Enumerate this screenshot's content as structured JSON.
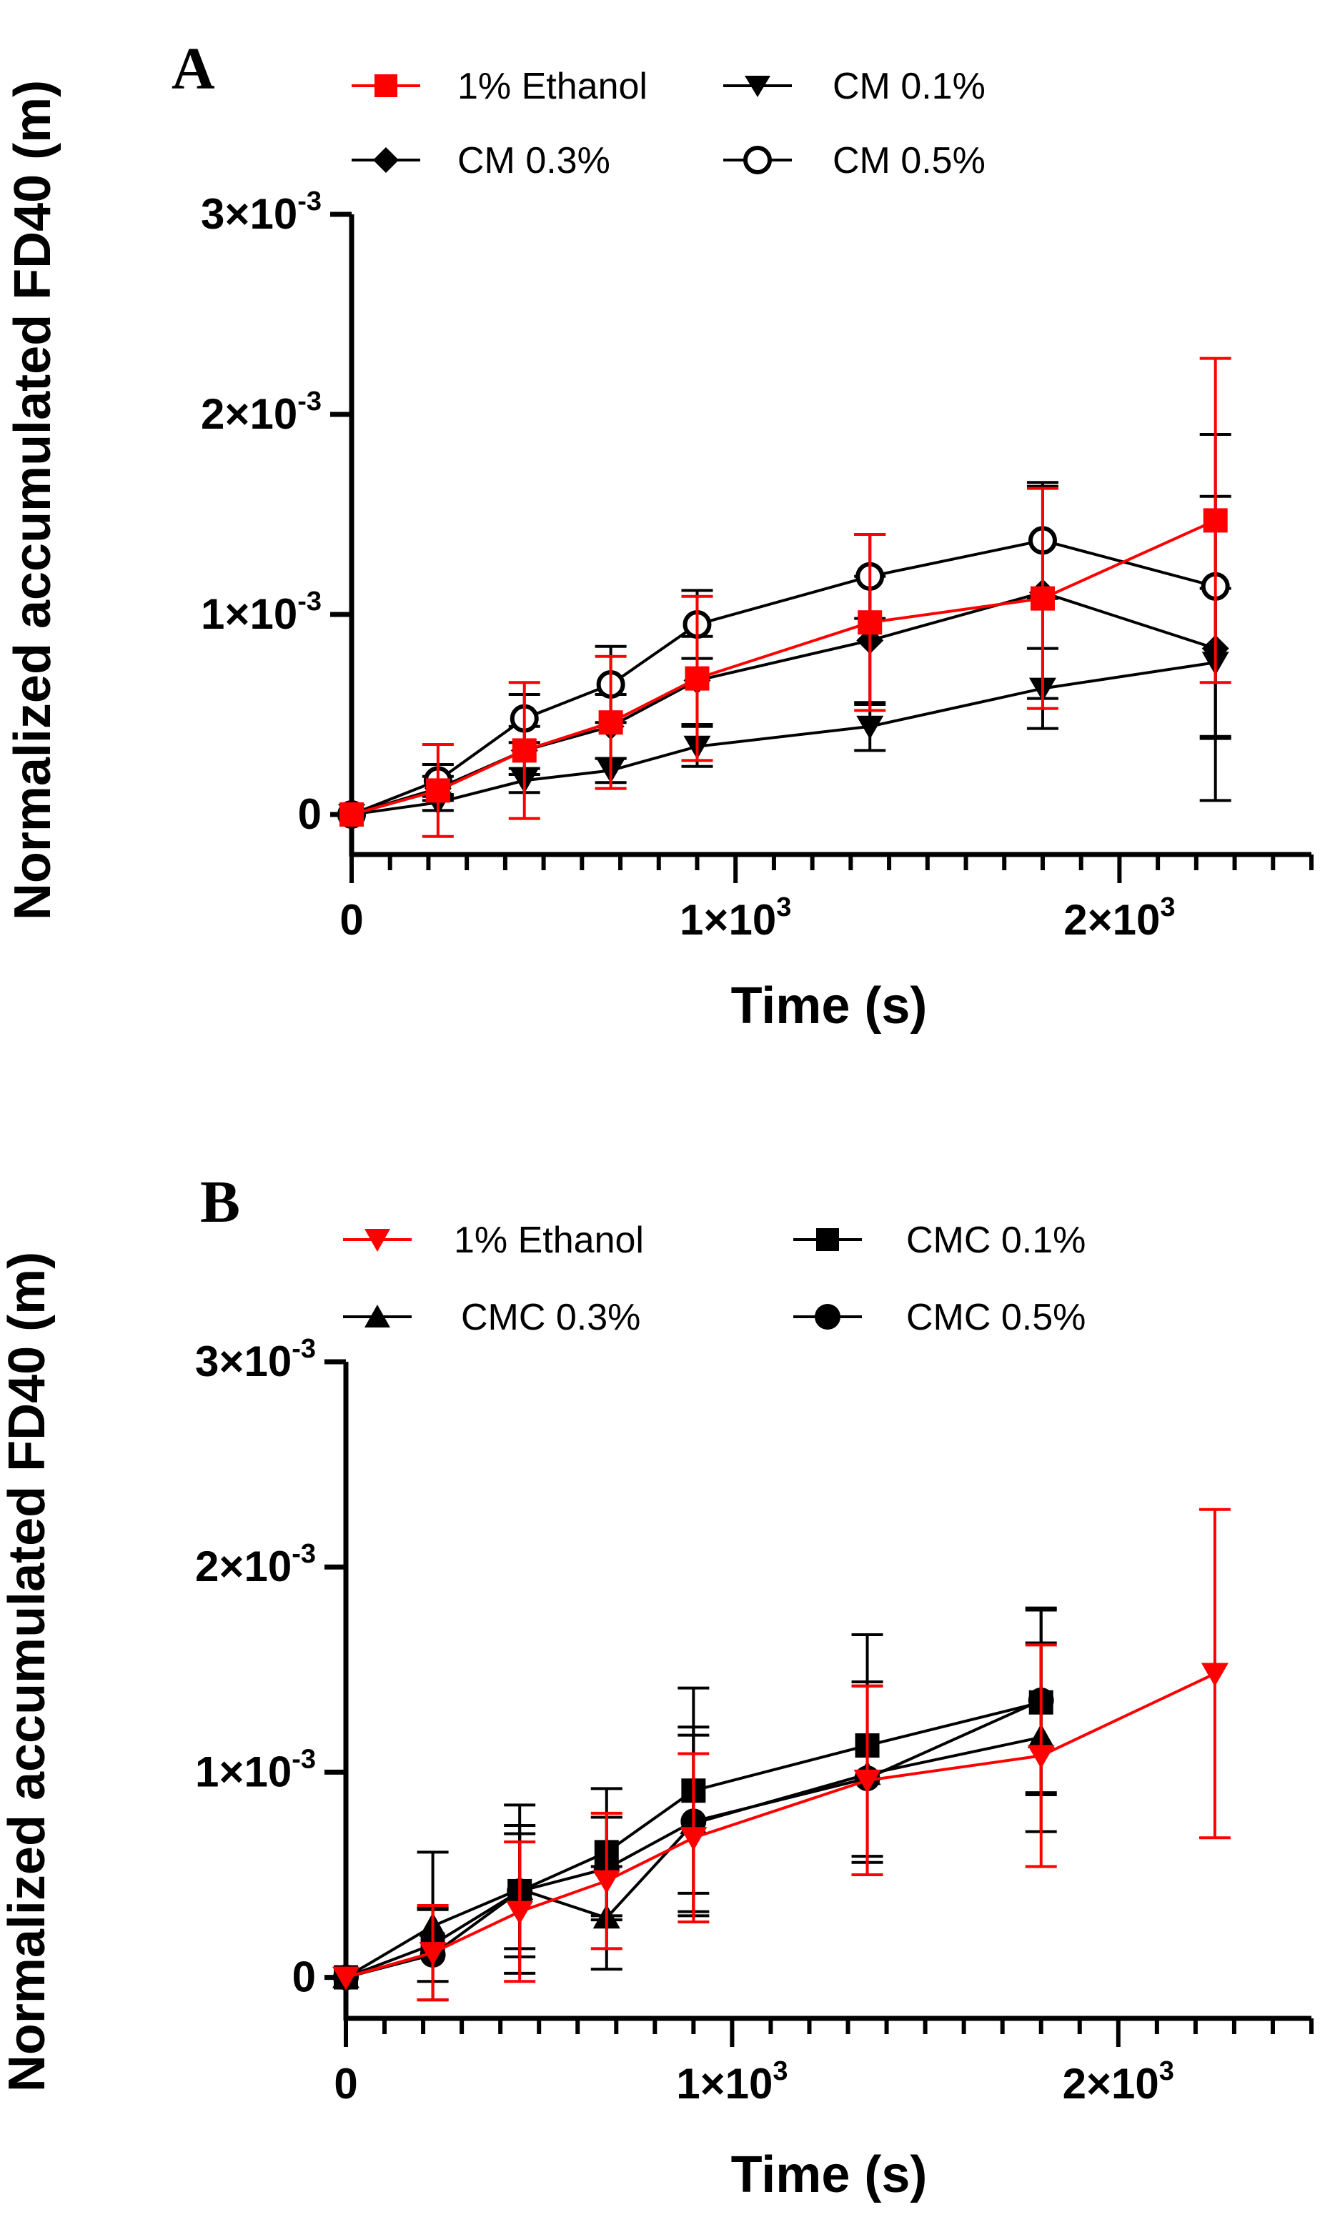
{
  "chart_data": [
    {
      "type": "line",
      "panel": "A",
      "xlabel": "Time (s)",
      "ylabel": "Normalized accumulated FD40 (m)",
      "xlim": [
        0,
        2500
      ],
      "ylim": [
        -0.0002,
        0.003
      ],
      "x_ticks": [
        {
          "value": 0,
          "mant": "0",
          "exp": ""
        },
        {
          "value": 1000,
          "mant": "1×10",
          "exp": "3"
        },
        {
          "value": 2000,
          "mant": "2×10",
          "exp": "3"
        }
      ],
      "y_ticks": [
        {
          "value": 0,
          "mant": "0",
          "exp": ""
        },
        {
          "value": 0.001,
          "mant": "1×10",
          "exp": "-3"
        },
        {
          "value": 0.002,
          "mant": "2×10",
          "exp": "-3"
        },
        {
          "value": 0.003,
          "mant": "3×10",
          "exp": "-3"
        }
      ],
      "legend_position": "top",
      "series": [
        {
          "name": "1% Ethanol",
          "color": "#ff0000",
          "marker": "square",
          "x": [
            0,
            225,
            450,
            675,
            900,
            1350,
            1800,
            2250
          ],
          "values": [
            0,
            0.00012,
            0.00032,
            0.00046,
            0.00068,
            0.00096,
            0.00108,
            0.00147
          ],
          "errors": [
            0,
            0.00023,
            0.00034,
            0.00033,
            0.00041,
            0.00044,
            0.00055,
            0.00081
          ]
        },
        {
          "name": "CM 0.1%",
          "color": "#000000",
          "marker": "triangle-down",
          "x": [
            0,
            225,
            450,
            675,
            900,
            1350,
            1800,
            2250
          ],
          "values": [
            0,
            6e-05,
            0.00017,
            0.00022,
            0.00034,
            0.00044,
            0.00063,
            0.00076
          ],
          "errors": [
            0,
            4e-05,
            6e-05,
            6e-05,
            0.0001,
            0.00012,
            0.0002,
            0.00037
          ]
        },
        {
          "name": "CM 0.3%",
          "color": "#000000",
          "marker": "diamond",
          "x": [
            0,
            225,
            450,
            675,
            900,
            1350,
            1800,
            2250
          ],
          "values": [
            0,
            0.00013,
            0.00032,
            0.00044,
            0.00067,
            0.00087,
            0.00111,
            0.00083
          ],
          "errors": [
            0,
            6e-05,
            0.00012,
            0.00016,
            0.00022,
            0.00032,
            0.00053,
            0.00076
          ]
        },
        {
          "name": "CM 0.5%",
          "color": "#000000",
          "marker": "circle-open",
          "x": [
            0,
            225,
            450,
            675,
            900,
            1350,
            1800,
            2250
          ],
          "values": [
            0,
            0.00017,
            0.00048,
            0.00065,
            0.00095,
            0.00119,
            0.00137,
            0.00114
          ],
          "errors": [
            0,
            8e-05,
            0.00012,
            0.00019,
            0.00017,
            0.00021,
            0.00029,
            0.00076
          ]
        }
      ]
    },
    {
      "type": "line",
      "panel": "B",
      "xlabel": "Time (s)",
      "ylabel": "Normalized accumulated FD40 (m)",
      "xlim": [
        0,
        2500
      ],
      "ylim": [
        -0.0002,
        0.003
      ],
      "x_ticks": [
        {
          "value": 0,
          "mant": "0",
          "exp": ""
        },
        {
          "value": 1000,
          "mant": "1×10",
          "exp": "3"
        },
        {
          "value": 2000,
          "mant": "2×10",
          "exp": "3"
        }
      ],
      "y_ticks": [
        {
          "value": 0,
          "mant": "0",
          "exp": ""
        },
        {
          "value": 0.001,
          "mant": "1×10",
          "exp": "-3"
        },
        {
          "value": 0.002,
          "mant": "2×10",
          "exp": "-3"
        },
        {
          "value": 0.003,
          "mant": "3×10",
          "exp": "-3"
        }
      ],
      "legend_position": "top",
      "series": [
        {
          "name": "1% Ethanol",
          "color": "#ff0000",
          "marker": "triangle-down",
          "x": [
            0,
            225,
            450,
            675,
            900,
            1350,
            1800,
            2250
          ],
          "values": [
            0,
            0.00012,
            0.00032,
            0.00047,
            0.00068,
            0.00096,
            0.00108,
            0.00148
          ],
          "errors": [
            0,
            0.00023,
            0.00034,
            0.00033,
            0.00041,
            0.00046,
            0.00054,
            0.0008
          ]
        },
        {
          "name": "CMC 0.1%",
          "color": "#000000",
          "marker": "square",
          "x": [
            0,
            225,
            450,
            675,
            900,
            1350,
            1800
          ],
          "values": [
            0,
            0.00016,
            0.00042,
            0.00061,
            0.00091,
            0.00113,
            0.00134
          ],
          "errors": [
            0,
            0.00018,
            0.00028,
            0.00031,
            0.0005,
            0.00054,
            0.00045
          ]
        },
        {
          "name": "CMC 0.3%",
          "color": "#000000",
          "marker": "triangle-up",
          "x": [
            0,
            225,
            450,
            675,
            900,
            1350,
            1800
          ],
          "values": [
            0,
            0.00025,
            0.00043,
            0.00029,
            0.00075,
            0.00099,
            0.00117
          ],
          "errors": [
            0,
            0.00036,
            0.00041,
            0.00025,
            0.00043,
            0.00043,
            0.00046
          ]
        },
        {
          "name": "CMC 0.5%",
          "color": "#000000",
          "marker": "circle",
          "x": [
            0,
            225,
            450,
            675,
            900,
            1350,
            1800
          ],
          "values": [
            0,
            0.00011,
            0.00042,
            0.00053,
            0.00076,
            0.00097,
            0.00135
          ],
          "errors": [
            0,
            0.00022,
            0.00032,
            0.00025,
            0.00046,
            0.00047,
            0.00045
          ]
        }
      ]
    }
  ]
}
